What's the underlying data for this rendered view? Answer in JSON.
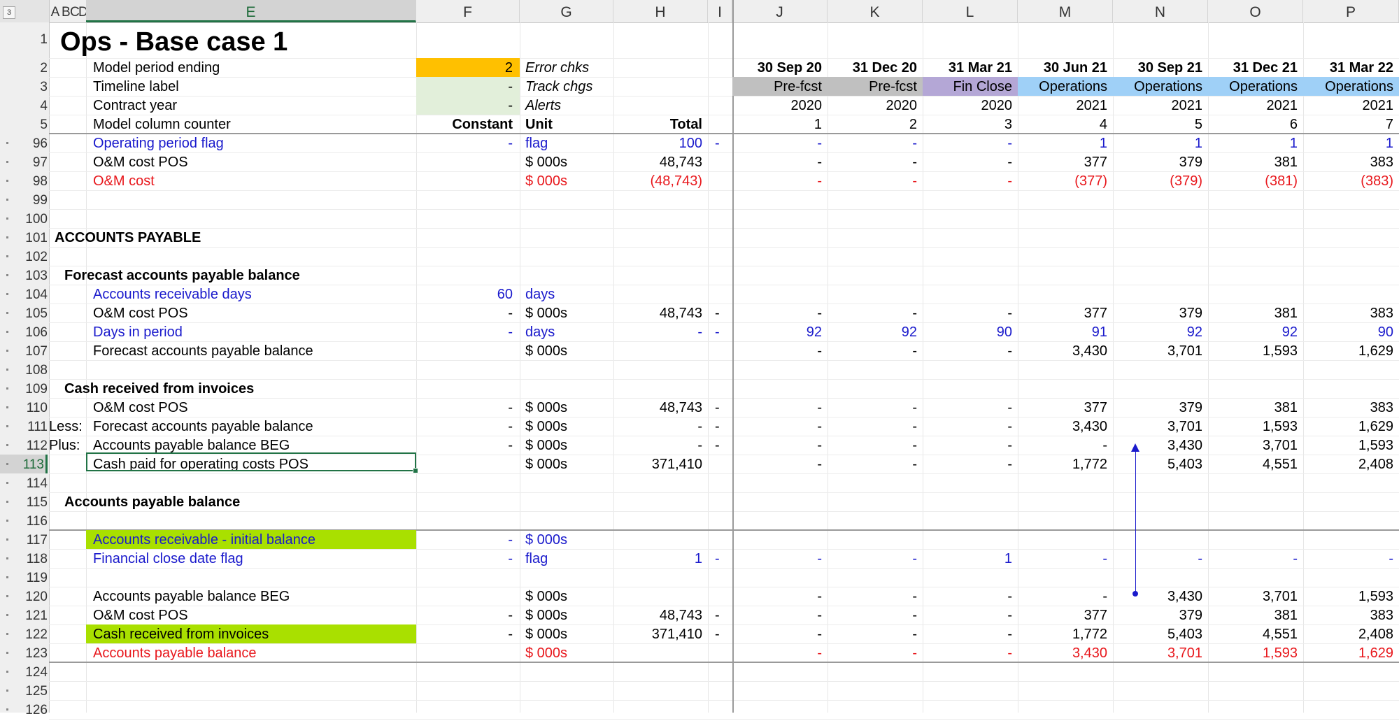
{
  "sheet": {
    "column_headers": [
      "A",
      "B",
      "C",
      "D",
      "E",
      "F",
      "G",
      "H",
      "I",
      "J",
      "K",
      "L",
      "M",
      "N",
      "O",
      "P"
    ],
    "outline_level_button": "3",
    "active_column": "E",
    "active_row": "113",
    "row_numbers": [
      "1",
      "2",
      "3",
      "4",
      "5",
      "96",
      "97",
      "98",
      "99",
      "100",
      "101",
      "102",
      "103",
      "104",
      "105",
      "106",
      "107",
      "108",
      "109",
      "110",
      "111",
      "112",
      "113",
      "114",
      "115",
      "116",
      "117",
      "118",
      "119",
      "120",
      "121",
      "122",
      "123",
      "124",
      "125",
      "126"
    ]
  },
  "header_block": {
    "title": "Ops - Base case 1",
    "rows": [
      {
        "label": "Model period ending",
        "value": "2",
        "info": "Error chks"
      },
      {
        "label": "Timeline label",
        "value": "-",
        "info": "Track chgs"
      },
      {
        "label": "Contract year",
        "value": "-",
        "info": "Alerts"
      },
      {
        "label": "Model column counter",
        "constant": "Constant",
        "unit": "Unit",
        "total": "Total"
      }
    ],
    "period_dates": [
      "30 Sep 20",
      "31 Dec 20",
      "31 Mar 21",
      "30 Jun 21",
      "30 Sep 21",
      "31 Dec 21",
      "31 Mar 22"
    ],
    "timeline_labels": [
      "Pre-fcst",
      "Pre-fcst",
      "Fin Close",
      "Operations",
      "Operations",
      "Operations",
      "Operations"
    ],
    "contract_years": [
      "2020",
      "2020",
      "2020",
      "2021",
      "2021",
      "2021",
      "2021"
    ],
    "column_counters": [
      "1",
      "2",
      "3",
      "4",
      "5",
      "6",
      "7"
    ]
  },
  "rows": {
    "r96": {
      "label": "Operating period flag",
      "constant": "-",
      "unit": "flag",
      "total": "100",
      "flag": "-",
      "values": [
        "-",
        "-",
        "-",
        "1",
        "1",
        "1",
        "1"
      ]
    },
    "r97": {
      "label": "O&M cost POS",
      "unit": "$ 000s",
      "total": "48,743",
      "values": [
        "-",
        "-",
        "-",
        "377",
        "379",
        "381",
        "383"
      ]
    },
    "r98": {
      "label": "O&M cost",
      "unit": "$ 000s",
      "total": "(48,743)",
      "values": [
        "-",
        "-",
        "-",
        "(377)",
        "(379)",
        "(381)",
        "(383)"
      ]
    },
    "r101": {
      "label": "ACCOUNTS PAYABLE"
    },
    "r103": {
      "label": "Forecast accounts payable balance"
    },
    "r104": {
      "label": "Accounts receivable days",
      "constant": "60",
      "unit": "days"
    },
    "r105": {
      "label": "O&M cost POS",
      "constant": "-",
      "unit": "$ 000s",
      "total": "48,743",
      "flag": "-",
      "values": [
        "-",
        "-",
        "-",
        "377",
        "379",
        "381",
        "383"
      ]
    },
    "r106": {
      "label": "Days in period",
      "constant": "-",
      "unit": "days",
      "total": "-",
      "flag": "-",
      "values": [
        "92",
        "92",
        "90",
        "91",
        "92",
        "92",
        "90"
      ]
    },
    "r107": {
      "label": "Forecast accounts payable balance",
      "unit": "$ 000s",
      "values": [
        "-",
        "-",
        "-",
        "3,430",
        "3,701",
        "1,593",
        "1,629"
      ]
    },
    "r109": {
      "label": "Cash received from invoices"
    },
    "r110": {
      "label": "O&M cost POS",
      "constant": "-",
      "unit": "$ 000s",
      "total": "48,743",
      "flag": "-",
      "values": [
        "-",
        "-",
        "-",
        "377",
        "379",
        "381",
        "383"
      ]
    },
    "r111": {
      "prefix": "Less:",
      "label": "Forecast accounts payable balance",
      "constant": "-",
      "unit": "$ 000s",
      "total": "-",
      "flag": "-",
      "values": [
        "-",
        "-",
        "-",
        "3,430",
        "3,701",
        "1,593",
        "1,629"
      ]
    },
    "r112": {
      "prefix": "Plus:",
      "label": "Accounts payable balance BEG",
      "constant": "-",
      "unit": "$ 000s",
      "total": "-",
      "flag": "-",
      "values": [
        "-",
        "-",
        "-",
        "-",
        "3,430",
        "3,701",
        "1,593"
      ]
    },
    "r113": {
      "label": "Cash paid for operating costs POS",
      "unit": "$ 000s",
      "total": "371,410",
      "values": [
        "-",
        "-",
        "-",
        "1,772",
        "5,403",
        "4,551",
        "2,408"
      ]
    },
    "r115": {
      "label": "Accounts payable balance"
    },
    "r117": {
      "label": "Accounts receivable - initial balance",
      "constant": "-",
      "unit": "$ 000s"
    },
    "r118": {
      "label": "Financial close date flag",
      "constant": "-",
      "unit": "flag",
      "total": "1",
      "flag": "-",
      "values": [
        "-",
        "-",
        "1",
        "-",
        "-",
        "-",
        "-"
      ]
    },
    "r120": {
      "label": "Accounts payable balance BEG",
      "unit": "$ 000s",
      "values": [
        "-",
        "-",
        "-",
        "-",
        "3,430",
        "3,701",
        "1,593"
      ]
    },
    "r121": {
      "label": "O&M cost POS",
      "constant": "-",
      "unit": "$ 000s",
      "total": "48,743",
      "flag": "-",
      "values": [
        "-",
        "-",
        "-",
        "377",
        "379",
        "381",
        "383"
      ]
    },
    "r122": {
      "label": "Cash received from invoices",
      "constant": "-",
      "unit": "$ 000s",
      "total": "371,410",
      "flag": "-",
      "values": [
        "-",
        "-",
        "-",
        "1,772",
        "5,403",
        "4,551",
        "2,408"
      ]
    },
    "r123": {
      "label": "Accounts payable balance",
      "unit": "$ 000s",
      "values": [
        "-",
        "-",
        "-",
        "3,430",
        "3,701",
        "1,593",
        "1,629"
      ]
    }
  },
  "colors": {
    "input_blue": "#1a1acc",
    "negative_red": "#e8171c",
    "gold_fill": "#ffc000",
    "lime_fill": "#a9e000",
    "selection_green": "#217346",
    "trace_arrow": "#1a1acc"
  }
}
